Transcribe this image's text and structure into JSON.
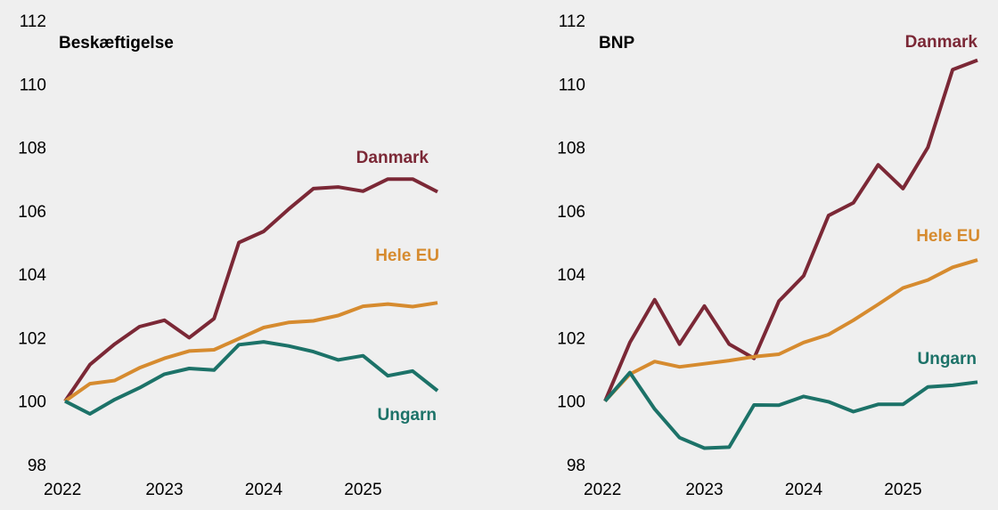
{
  "colors": {
    "background": "#efefef",
    "danmark": "#7b2836",
    "hele_eu": "#d68b2f",
    "ungarn": "#1c7268"
  },
  "chart_data": [
    {
      "type": "line",
      "title": "Beskæftigelse",
      "xlabel": "",
      "ylabel": "",
      "ylim": [
        98,
        112
      ],
      "yticks": [
        98,
        100,
        102,
        104,
        106,
        108,
        110,
        112
      ],
      "xlim": [
        2022,
        2025.75
      ],
      "xticks": [
        2022,
        2023,
        2024,
        2025
      ],
      "grid": false,
      "x": [
        2022,
        2022.25,
        2022.5,
        2022.75,
        2023,
        2023.25,
        2023.5,
        2023.75,
        2024,
        2024.25,
        2024.5,
        2024.75,
        2025,
        2025.25,
        2025.5,
        2025.75
      ],
      "series": [
        {
          "name": "Danmark",
          "color": "#7b2836",
          "values": [
            100.0,
            101.15,
            101.8,
            102.35,
            102.55,
            102.0,
            102.6,
            105.0,
            105.35,
            106.05,
            106.7,
            106.75,
            106.62,
            107.0,
            107.0,
            106.6
          ]
        },
        {
          "name": "Hele EU",
          "color": "#d68b2f",
          "values": [
            100.0,
            100.55,
            100.65,
            101.05,
            101.35,
            101.58,
            101.62,
            101.97,
            102.32,
            102.48,
            102.53,
            102.7,
            102.99,
            103.06,
            102.98,
            103.1
          ]
        },
        {
          "name": "Ungarn",
          "color": "#1c7268",
          "values": [
            100.0,
            99.6,
            100.05,
            100.42,
            100.85,
            101.03,
            100.98,
            101.78,
            101.87,
            101.74,
            101.56,
            101.3,
            101.43,
            100.8,
            100.95,
            100.33
          ]
        }
      ]
    },
    {
      "type": "line",
      "title": "BNP",
      "xlabel": "",
      "ylabel": "",
      "ylim": [
        98,
        112
      ],
      "yticks": [
        98,
        100,
        102,
        104,
        106,
        108,
        110,
        112
      ],
      "xlim": [
        2022,
        2025.75
      ],
      "xticks": [
        2022,
        2023,
        2024,
        2025
      ],
      "grid": false,
      "x": [
        2022,
        2022.25,
        2022.5,
        2022.75,
        2023,
        2023.25,
        2023.5,
        2023.75,
        2024,
        2024.25,
        2024.5,
        2024.75,
        2025,
        2025.25,
        2025.5,
        2025.75
      ],
      "series": [
        {
          "name": "Danmark",
          "color": "#7b2836",
          "values": [
            100.0,
            101.85,
            103.2,
            101.8,
            103.0,
            101.8,
            101.35,
            103.15,
            103.95,
            105.85,
            106.25,
            107.45,
            106.7,
            108.0,
            110.45,
            110.75
          ]
        },
        {
          "name": "Hele EU",
          "color": "#d68b2f",
          "values": [
            100.0,
            100.85,
            101.25,
            101.08,
            101.18,
            101.28,
            101.4,
            101.48,
            101.85,
            102.1,
            102.55,
            103.05,
            103.57,
            103.82,
            104.22,
            104.45
          ]
        },
        {
          "name": "Ungarn",
          "color": "#1c7268",
          "values": [
            100.0,
            100.9,
            99.75,
            98.85,
            98.52,
            98.55,
            99.88,
            99.87,
            100.15,
            99.98,
            99.67,
            99.9,
            99.9,
            100.45,
            100.5,
            100.6
          ]
        }
      ]
    }
  ]
}
